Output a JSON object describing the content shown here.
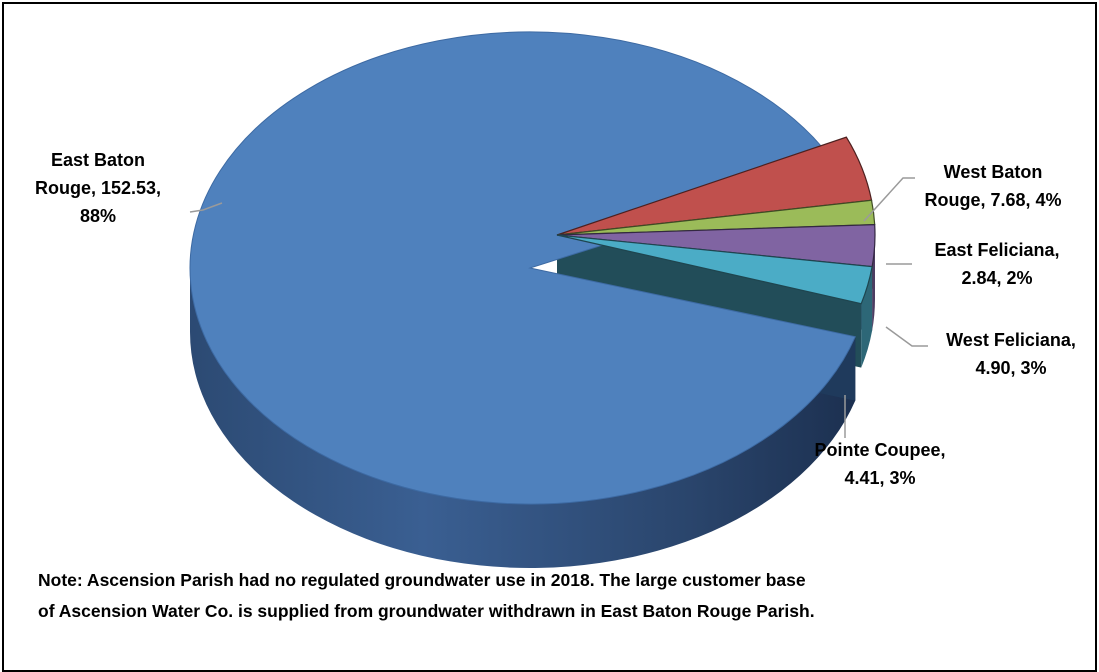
{
  "chart_data": {
    "type": "pie",
    "style": "3d-exploded",
    "categories": [
      "East Baton Rouge",
      "West Baton Rouge",
      "East Feliciana",
      "West Feliciana",
      "Pointe Coupee"
    ],
    "values": [
      152.53,
      7.68,
      2.84,
      4.9,
      4.41
    ],
    "percent_labels": [
      "88%",
      "4%",
      "2%",
      "3%",
      "3%"
    ],
    "colors": [
      "#4F81BD",
      "#C0504D",
      "#9BBB59",
      "#8064A2",
      "#4BACC6"
    ],
    "labels": [
      {
        "line1": "East Baton",
        "line2": "Rouge, 152.53,",
        "line3": "88%"
      },
      {
        "line1": "West Baton",
        "line2": "Rouge, 7.68, 4%"
      },
      {
        "line1": "East Feliciana,",
        "line2": "2.84, 2%"
      },
      {
        "line1": "West Feliciana,",
        "line2": "4.90, 3%"
      },
      {
        "line1": "Pointe Coupee,",
        "line2": "4.41, 3%"
      }
    ],
    "legend": "none"
  },
  "note": {
    "line1": "Note: Ascension Parish had no regulated groundwater use in 2018. The large customer base",
    "line2": "of Ascension Water Co. is supplied from groundwater withdrawn in East Baton Rouge Parish."
  }
}
